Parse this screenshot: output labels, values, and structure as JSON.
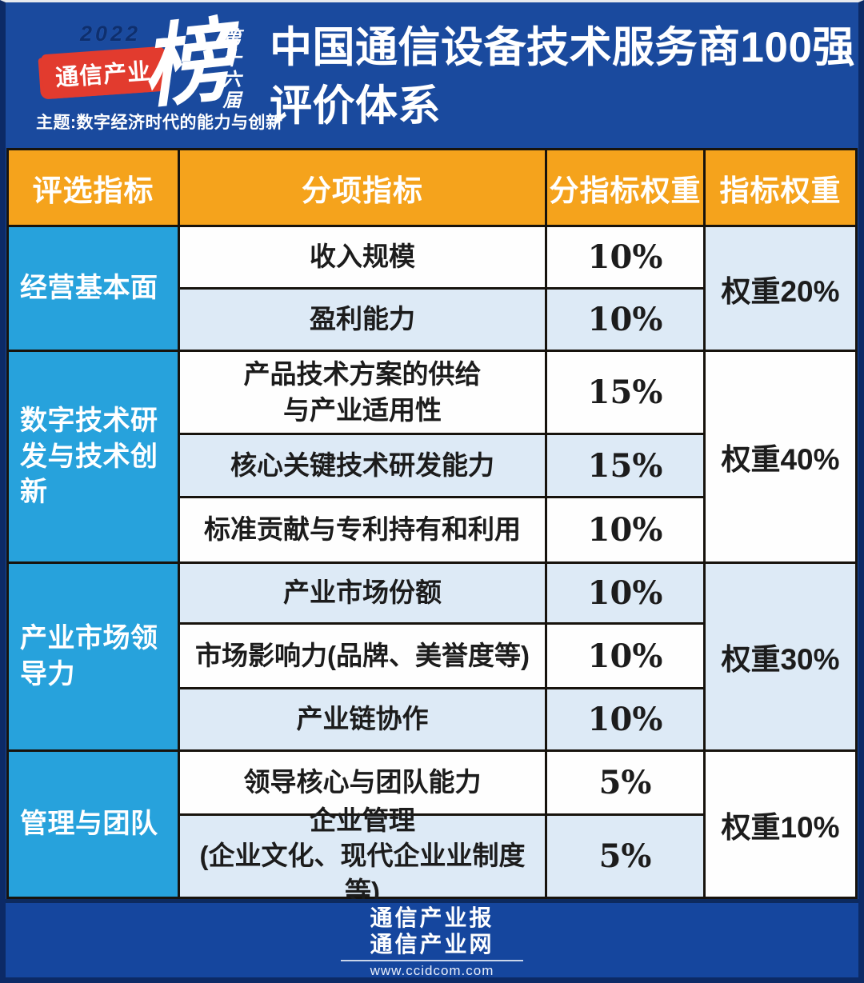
{
  "header": {
    "logo": {
      "year": "2022",
      "brand": "通信产业",
      "bang": "榜",
      "edition": "第十六届",
      "theme": "主题:数字经济时代的能力与创新"
    },
    "title_line1": "中国通信设备技术服务商100强",
    "title_line2": "评价体系"
  },
  "table": {
    "columns": [
      "评选指标",
      "分项指标",
      "分指标权重",
      "指标权重"
    ],
    "groups": [
      {
        "category": "经营基本面",
        "group_weight": "权重20%",
        "rows": [
          {
            "indicator": "收入规模",
            "weight": "10%"
          },
          {
            "indicator": "盈利能力",
            "weight": "10%"
          }
        ]
      },
      {
        "category": "数字技术研\n发与技术创\n新",
        "group_weight": "权重40%",
        "rows": [
          {
            "indicator": "产品技术方案的供给\n与产业适用性",
            "weight": "15%"
          },
          {
            "indicator": "核心关键技术研发能力",
            "weight": "15%"
          },
          {
            "indicator": "标准贡献与专利持有和利用",
            "weight": "10%"
          }
        ]
      },
      {
        "category": "产业市场领\n导力",
        "group_weight": "权重30%",
        "rows": [
          {
            "indicator": "产业市场份额",
            "weight": "10%"
          },
          {
            "indicator": "市场影响力(品牌、美誉度等)",
            "weight": "10%"
          },
          {
            "indicator": "产业链协作",
            "weight": "10%"
          }
        ]
      },
      {
        "category": "管理与团队",
        "group_weight": "权重10%",
        "rows": [
          {
            "indicator": "领导核心与团队能力",
            "weight": "5%"
          },
          {
            "indicator": "企业管理\n(企业文化、现代企业业制度等)",
            "weight": "5%"
          }
        ]
      }
    ]
  },
  "footer": {
    "paper": "通信产业报",
    "site": "通信产业网",
    "url": "www.ccidcom.com"
  },
  "colors": {
    "poster_blue": "#1a4a9e",
    "frame_navy": "#0c2a66",
    "header_orange": "#f5a31c",
    "category_cyan": "#27a2dc",
    "row_alt_blue": "#ddeaf6",
    "logo_red": "#e23b2e",
    "grid_black": "#17130d",
    "text_white": "#ffffff",
    "text_black": "#1c1c1c"
  }
}
